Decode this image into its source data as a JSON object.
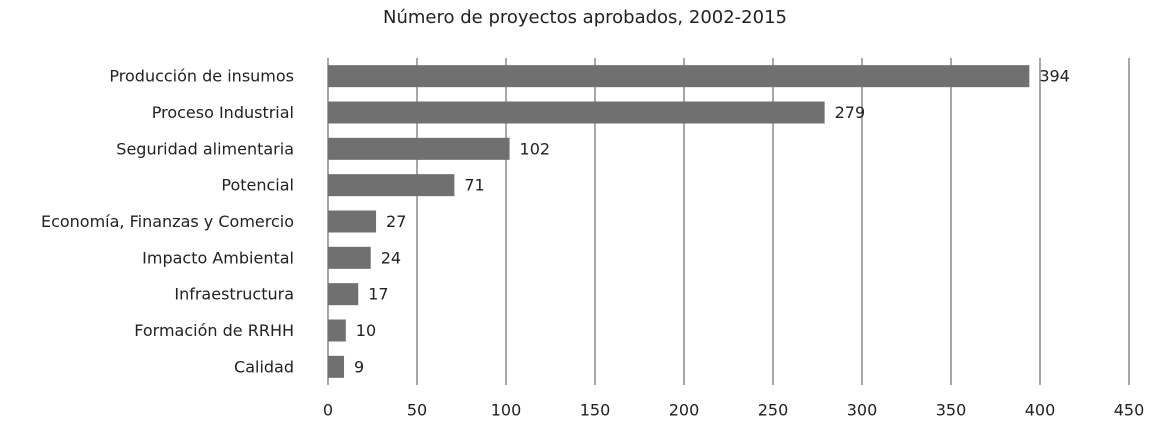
{
  "chart_data": {
    "type": "bar",
    "orientation": "horizontal",
    "title": "Número de proyectos aprobados, 2002-2015",
    "categories": [
      "Producción de insumos",
      "Proceso Industrial",
      "Seguridad alimentaria",
      "Potencial",
      "Economía, Finanzas y Comercio",
      "Impacto Ambiental",
      "Infraestructura",
      "Formación de RRHH",
      "Calidad"
    ],
    "values": [
      394,
      279,
      102,
      71,
      27,
      24,
      17,
      10,
      9
    ],
    "color": "#707070",
    "xlim": [
      0,
      450
    ],
    "xticks": [
      0,
      50,
      100,
      150,
      200,
      250,
      300,
      350,
      400,
      450
    ],
    "grid": true
  }
}
